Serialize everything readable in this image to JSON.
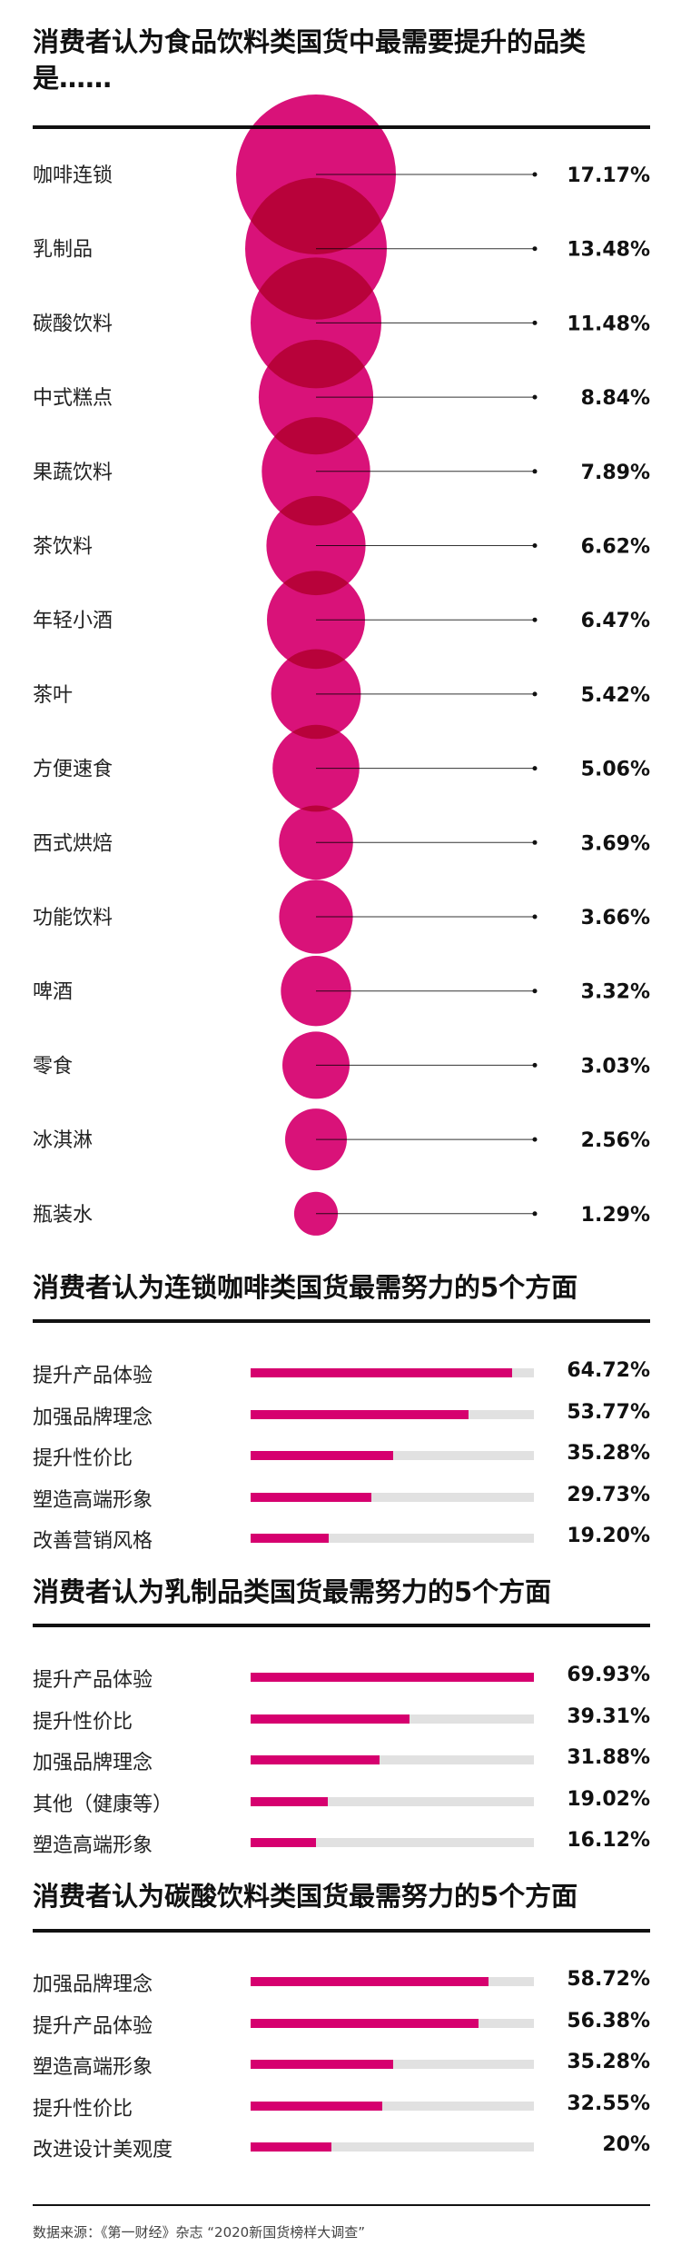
{
  "colors": {
    "accent": "#d6006f",
    "accent_overlap": "#a3073f",
    "track": "#e1e1e1",
    "text": "#111111"
  },
  "chart_data": [
    {
      "type": "bubble",
      "title": "消费者认为食品饮料类国货中最需要提升的品类是……",
      "categories": [
        "咖啡连锁",
        "乳制品",
        "碳酸饮料",
        "中式糕点",
        "果蔬饮料",
        "茶饮料",
        "年轻小酒",
        "茶叶",
        "方便速食",
        "西式烘焙",
        "功能饮料",
        "啤酒",
        "零食",
        "冰淇淋",
        "瓶装水"
      ],
      "values": [
        17.17,
        13.48,
        11.48,
        8.84,
        7.89,
        6.62,
        6.47,
        5.42,
        5.06,
        3.69,
        3.66,
        3.32,
        3.03,
        2.56,
        1.29
      ],
      "value_labels": [
        "17.17%",
        "13.48%",
        "11.48%",
        "8.84%",
        "7.89%",
        "6.62%",
        "6.47%",
        "5.42%",
        "5.06%",
        "3.69%",
        "3.66%",
        "3.32%",
        "3.03%",
        "2.56%",
        "1.29%"
      ],
      "unit": "%"
    },
    {
      "type": "bar",
      "title": "消费者认为连锁咖啡类国货最需努力的5个方面",
      "categories": [
        "提升产品体验",
        "加强品牌理念",
        "提升性价比",
        "塑造高端形象",
        "改善营销风格"
      ],
      "values": [
        64.72,
        53.77,
        35.28,
        29.73,
        19.2
      ],
      "value_labels": [
        "64.72%",
        "53.77%",
        "35.28%",
        "29.73%",
        "19.20%"
      ],
      "unit": "%"
    },
    {
      "type": "bar",
      "title": "消费者认为乳制品类国货最需努力的5个方面",
      "categories": [
        "提升产品体验",
        "提升性价比",
        "加强品牌理念",
        "其他（健康等）",
        "塑造高端形象"
      ],
      "values": [
        69.93,
        39.31,
        31.88,
        19.02,
        16.12
      ],
      "value_labels": [
        "69.93%",
        "39.31%",
        "31.88%",
        "19.02%",
        "16.12%"
      ],
      "unit": "%"
    },
    {
      "type": "bar",
      "title": "消费者认为碳酸饮料类国货最需努力的5个方面",
      "categories": [
        "加强品牌理念",
        "提升产品体验",
        "塑造高端形象",
        "提升性价比",
        "改进设计美观度"
      ],
      "values": [
        58.72,
        56.38,
        35.28,
        32.55,
        20
      ],
      "value_labels": [
        "58.72%",
        "56.38%",
        "35.28%",
        "32.55%",
        "20%"
      ],
      "unit": "%"
    }
  ],
  "source": "数据来源：《第一财经》杂志 “2020新国货榜样大调查”"
}
